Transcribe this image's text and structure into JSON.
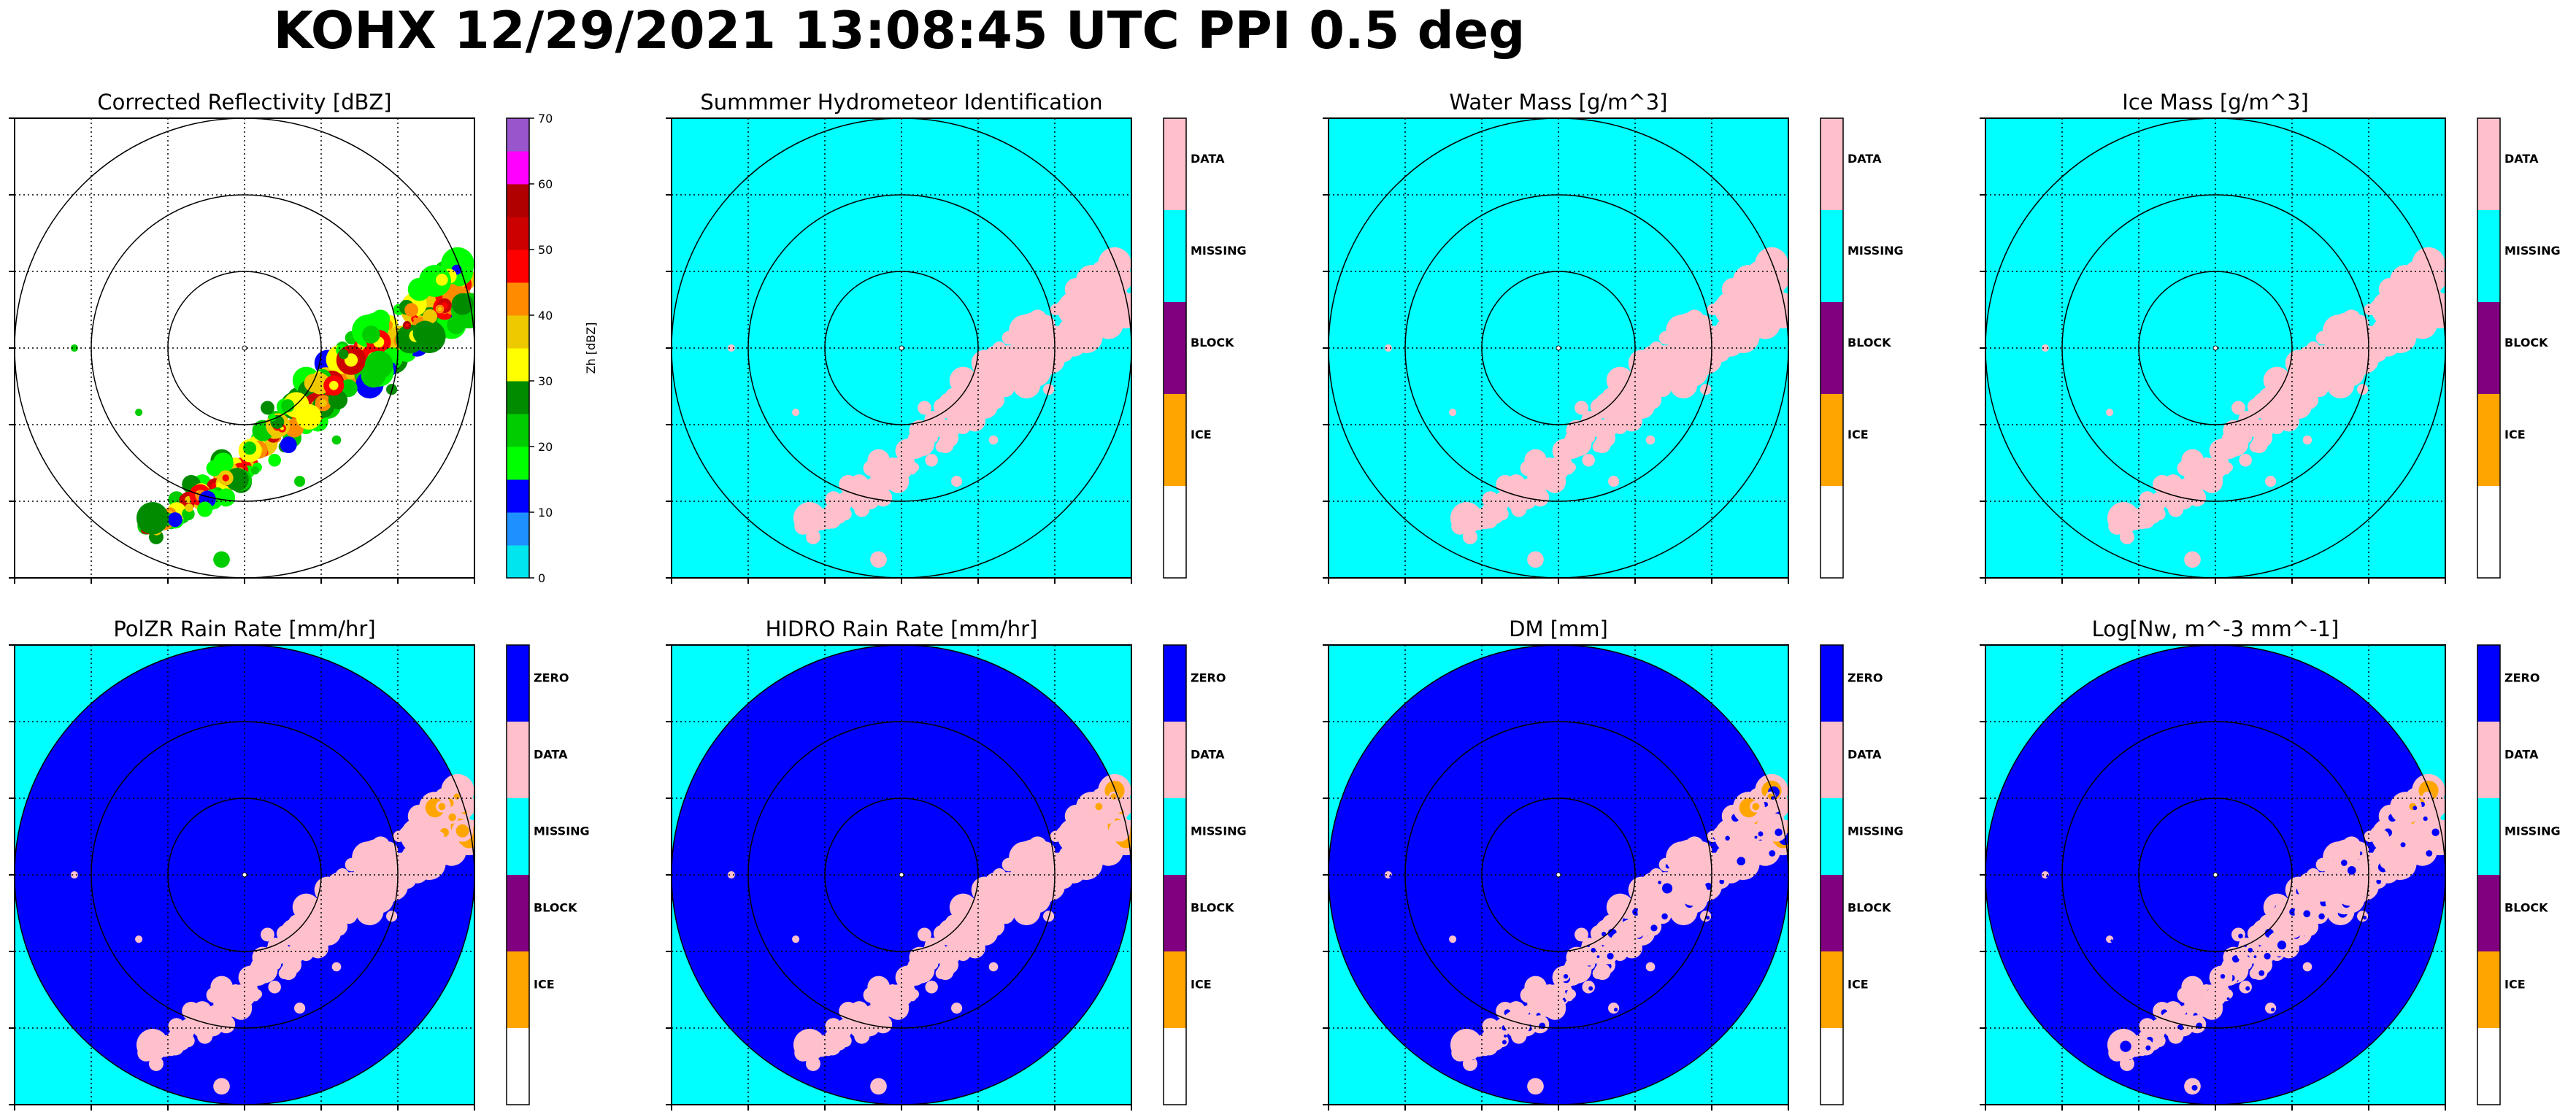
{
  "page": {
    "title": "KOHX 12/29/2021 13:08:45 UTC PPI 0.5 deg"
  },
  "colors": {
    "background_cyan": "#00ffff",
    "rain_blue": "#0000ff",
    "data_pink": "#ffc0cb",
    "block_purple": "#800080",
    "ice_orange": "#ffa500",
    "empty_white": "#ffffff"
  },
  "chart_data": [
    {
      "type": "heatmap",
      "title": "Corrected Reflectivity [dBZ]",
      "colorbar": {
        "kind": "continuous",
        "label": "Zh [dBZ]",
        "ticks": [
          "0",
          "10",
          "20",
          "30",
          "40",
          "50",
          "60",
          "70"
        ],
        "range": [
          0,
          70
        ],
        "colors": [
          "#00e5ee",
          "#1e90ff",
          "#0000ff",
          "#00ff00",
          "#00cd00",
          "#008b00",
          "#ffff00",
          "#eec900",
          "#ff8c00",
          "#ff0000",
          "#cd0000",
          "#b00000",
          "#ff00ff",
          "#9955cc"
        ]
      },
      "background": "#ffffff",
      "range_rings": 3,
      "grid": true
    },
    {
      "type": "heatmap",
      "title": "Summmer Hydrometeor Identification",
      "colorbar": {
        "kind": "categorical",
        "categories": [
          "DATA",
          "MISSING",
          "BLOCK",
          "ICE",
          ""
        ],
        "colors": [
          "#ffc0cb",
          "#00ffff",
          "#800080",
          "#ffa500",
          "#ffffff"
        ]
      },
      "background": "#00ffff",
      "range_rings": 3,
      "grid": true
    },
    {
      "type": "heatmap",
      "title": "Water Mass [g/m^3]",
      "colorbar": {
        "kind": "categorical",
        "categories": [
          "DATA",
          "MISSING",
          "BLOCK",
          "ICE",
          ""
        ],
        "colors": [
          "#ffc0cb",
          "#00ffff",
          "#800080",
          "#ffa500",
          "#ffffff"
        ]
      },
      "background": "#00ffff",
      "range_rings": 3,
      "grid": true
    },
    {
      "type": "heatmap",
      "title": "Ice Mass [g/m^3]",
      "colorbar": {
        "kind": "categorical",
        "categories": [
          "DATA",
          "MISSING",
          "BLOCK",
          "ICE",
          ""
        ],
        "colors": [
          "#ffc0cb",
          "#00ffff",
          "#800080",
          "#ffa500",
          "#ffffff"
        ]
      },
      "background": "#00ffff",
      "range_rings": 3,
      "grid": true
    },
    {
      "type": "heatmap",
      "title": "PolZR Rain Rate [mm/hr]",
      "colorbar": {
        "kind": "categorical",
        "categories": [
          "ZERO",
          "DATA",
          "MISSING",
          "BLOCK",
          "ICE",
          ""
        ],
        "colors": [
          "#0000ff",
          "#ffc0cb",
          "#00ffff",
          "#800080",
          "#ffa500",
          "#ffffff"
        ]
      },
      "background": "#00ffff",
      "disk": "#0000ff",
      "range_rings": 3,
      "grid": true
    },
    {
      "type": "heatmap",
      "title": "HIDRO Rain Rate [mm/hr]",
      "colorbar": {
        "kind": "categorical",
        "categories": [
          "ZERO",
          "DATA",
          "MISSING",
          "BLOCK",
          "ICE",
          ""
        ],
        "colors": [
          "#0000ff",
          "#ffc0cb",
          "#00ffff",
          "#800080",
          "#ffa500",
          "#ffffff"
        ]
      },
      "background": "#00ffff",
      "disk": "#0000ff",
      "range_rings": 3,
      "grid": true
    },
    {
      "type": "heatmap",
      "title": "DM [mm]",
      "colorbar": {
        "kind": "categorical",
        "categories": [
          "ZERO",
          "DATA",
          "MISSING",
          "BLOCK",
          "ICE",
          ""
        ],
        "colors": [
          "#0000ff",
          "#ffc0cb",
          "#00ffff",
          "#800080",
          "#ffa500",
          "#ffffff"
        ]
      },
      "background": "#00ffff",
      "disk": "#0000ff",
      "range_rings": 3,
      "grid": true
    },
    {
      "type": "heatmap",
      "title": "Log[Nw, m^-3 mm^-1]",
      "colorbar": {
        "kind": "categorical",
        "categories": [
          "ZERO",
          "DATA",
          "MISSING",
          "BLOCK",
          "ICE",
          ""
        ],
        "colors": [
          "#0000ff",
          "#ffc0cb",
          "#00ffff",
          "#800080",
          "#ffa500",
          "#ffffff"
        ]
      },
      "background": "#00ffff",
      "disk": "#0000ff",
      "range_rings": 3,
      "grid": true
    }
  ]
}
